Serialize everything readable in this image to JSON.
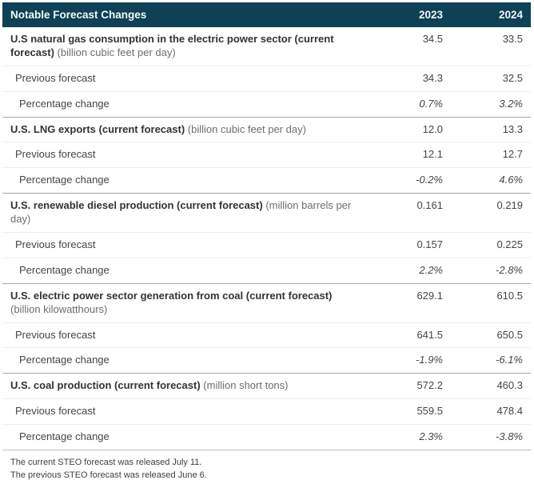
{
  "header": {
    "title": "Notable Forecast Changes",
    "col_2023": "2023",
    "col_2024": "2024"
  },
  "labels": {
    "previous": "Previous forecast",
    "pct": "Percentage change"
  },
  "sections": [
    {
      "label": "U.S natural gas consumption in the electric power sector (current forecast)",
      "unit": "(billion cubic feet per day)",
      "current": {
        "y2023": "34.5",
        "y2024": "33.5"
      },
      "previous": {
        "y2023": "34.3",
        "y2024": "32.5"
      },
      "pct": {
        "y2023": "0.7%",
        "y2024": "3.2%"
      }
    },
    {
      "label": "U.S. LNG exports (current forecast)",
      "unit": "(billion cubic feet per day)",
      "current": {
        "y2023": "12.0",
        "y2024": "13.3"
      },
      "previous": {
        "y2023": "12.1",
        "y2024": "12.7"
      },
      "pct": {
        "y2023": "-0.2%",
        "y2024": "4.6%"
      }
    },
    {
      "label": "U.S. renewable diesel production (current forecast)",
      "unit": "(million barrels per day)",
      "current": {
        "y2023": "0.161",
        "y2024": "0.219"
      },
      "previous": {
        "y2023": "0.157",
        "y2024": "0.225"
      },
      "pct": {
        "y2023": "2.2%",
        "y2024": "-2.8%"
      }
    },
    {
      "label": "U.S. electric power sector generation from coal (current forecast)",
      "unit": "(billion kilowatthours)",
      "current": {
        "y2023": "629.1",
        "y2024": "610.5"
      },
      "previous": {
        "y2023": "641.5",
        "y2024": "650.5"
      },
      "pct": {
        "y2023": "-1.9%",
        "y2024": "-6.1%"
      }
    },
    {
      "label": "U.S. coal production (current forecast)",
      "unit": "(million short tons)",
      "current": {
        "y2023": "572.2",
        "y2024": "460.3"
      },
      "previous": {
        "y2023": "559.5",
        "y2024": "478.4"
      },
      "pct": {
        "y2023": "2.3%",
        "y2024": "-3.8%"
      }
    }
  ],
  "footnotes": [
    "The current STEO forecast was released July 11.",
    "The previous STEO forecast was released June 6."
  ],
  "colors": {
    "header_background": "#0e4156",
    "header_text": "#f4f8fa"
  }
}
